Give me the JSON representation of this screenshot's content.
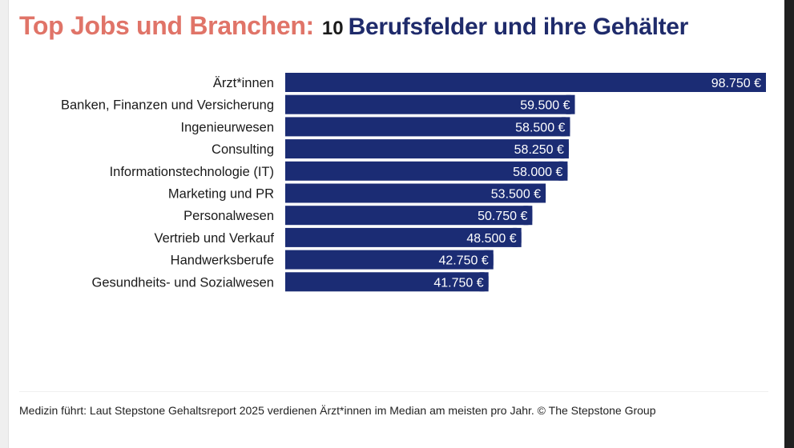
{
  "header": {
    "title_left": "Top Jobs und Branchen:",
    "title_number": "10",
    "title_right": "Berufsfelder und ihre Gehälter"
  },
  "chart_data": {
    "type": "bar",
    "orientation": "horizontal",
    "title": "Top Jobs und Branchen: 10 Berufsfelder und ihre Gehälter",
    "categories": [
      "Ärzt*innen",
      "Banken, Finanzen und Versicherung",
      "Ingenieurwesen",
      "Consulting",
      "Informationstechnologie (IT)",
      "Marketing und PR",
      "Personalwesen",
      "Vertrieb und Verkauf",
      "Handwerksberufe",
      "Gesundheits- und Sozialwesen"
    ],
    "values": [
      98750,
      59500,
      58500,
      58250,
      58000,
      53500,
      50750,
      48500,
      42750,
      41750
    ],
    "value_labels": [
      "98.750 €",
      "59.500 €",
      "58.500 €",
      "58.250 €",
      "58.000 €",
      "53.500 €",
      "50.750 €",
      "48.500 €",
      "42.750 €",
      "41.750 €"
    ],
    "unit": "€",
    "xlim": [
      0,
      98750
    ],
    "color": "#1b2c74"
  },
  "footer": {
    "caption": "Medizin führt: Laut Stepstone Gehaltsreport 2025 verdienen Ärzt*innen im Median am meisten pro Jahr. © The Stepstone Group"
  }
}
